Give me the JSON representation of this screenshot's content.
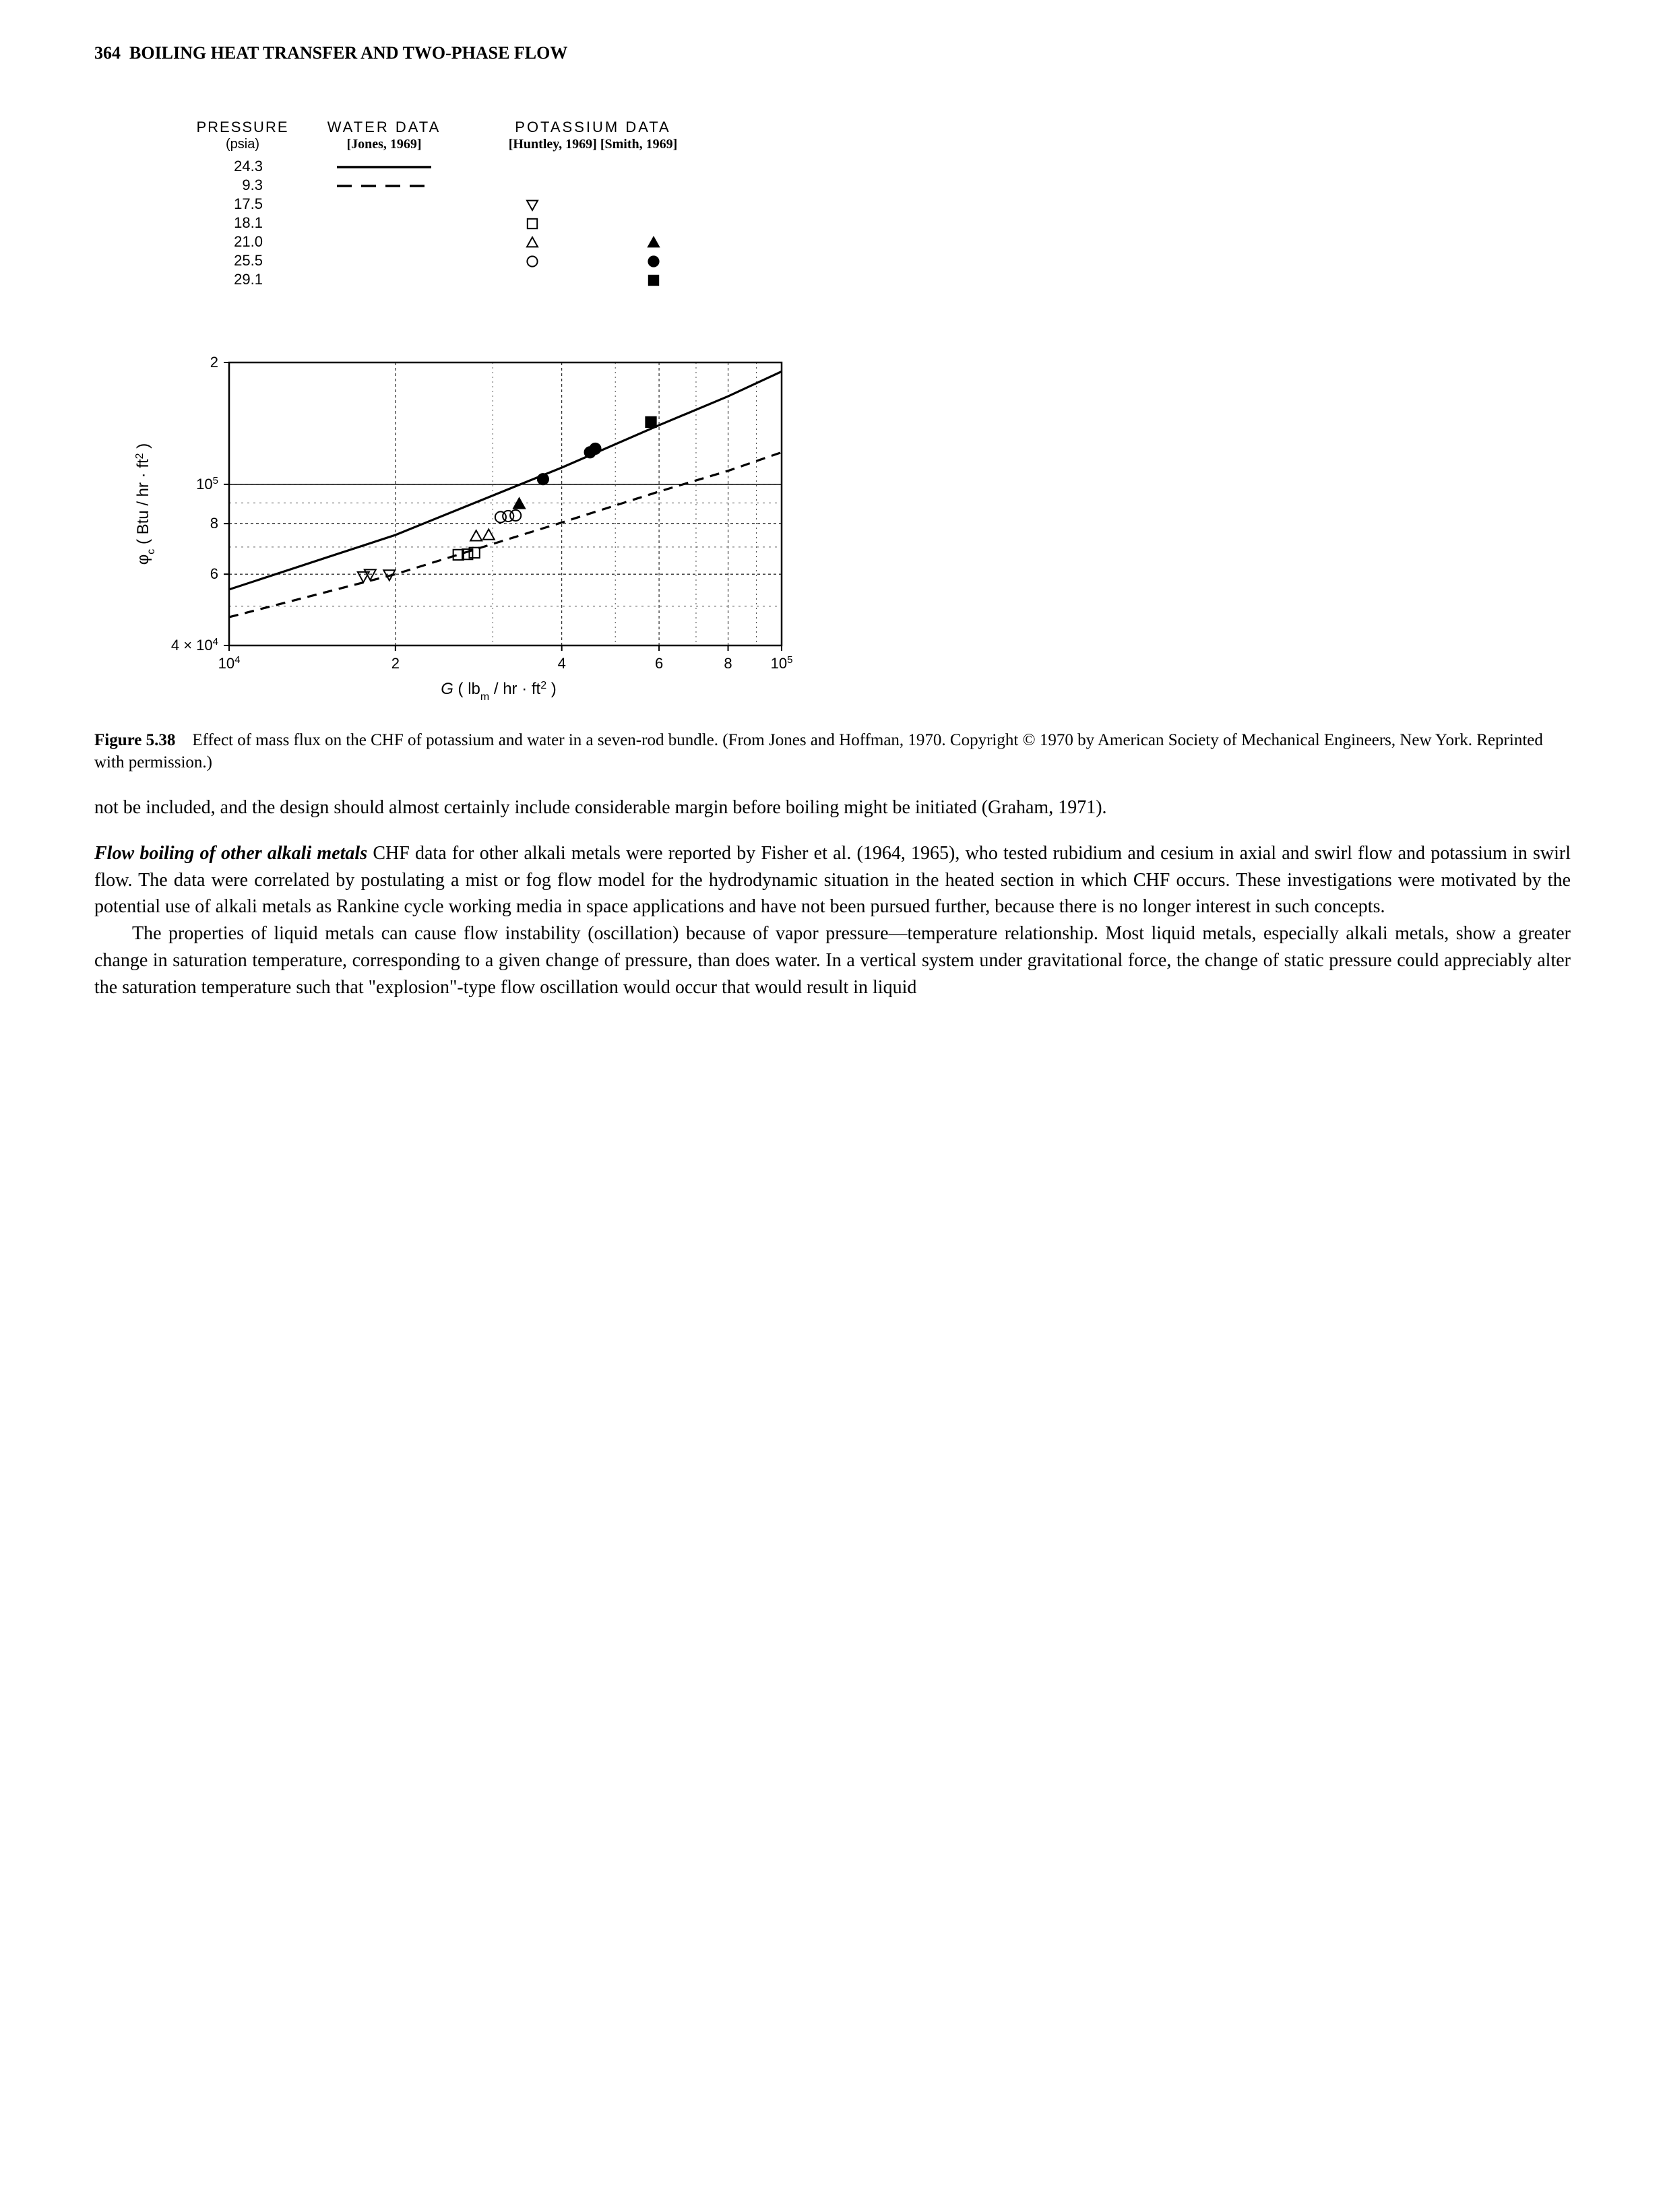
{
  "header": {
    "page_number": "364",
    "running_title": "BOILING HEAT TRANSFER AND TWO-PHASE FLOW"
  },
  "figure": {
    "type": "scatter-line-log-log",
    "legend_header": {
      "col1": "PRESSURE",
      "col1_sub": "(psia)",
      "col2": "WATER  DATA",
      "col2_sub": "[Jones, 1969]",
      "col3": "POTASSIUM   DATA",
      "col3_sub": "[Huntley, 1969] [Smith, 1969]"
    },
    "legend_rows": [
      {
        "pressure": "24.3",
        "water": "solid-line",
        "huntley": "",
        "smith": ""
      },
      {
        "pressure": "9.3",
        "water": "dash-line",
        "huntley": "",
        "smith": ""
      },
      {
        "pressure": "17.5",
        "water": "",
        "huntley": "tri-down-open",
        "smith": ""
      },
      {
        "pressure": "18.1",
        "water": "",
        "huntley": "square-open",
        "smith": ""
      },
      {
        "pressure": "21.0",
        "water": "",
        "huntley": "tri-up-open",
        "smith": "tri-up-filled"
      },
      {
        "pressure": "25.5",
        "water": "",
        "huntley": "circle-open",
        "smith": "circle-filled"
      },
      {
        "pressure": "29.1",
        "water": "",
        "huntley": "",
        "smith": "square-filled"
      }
    ],
    "axes": {
      "xlabel": "G  ( lb_m / hr · ft^2  )",
      "ylabel": "φ_c  (Btu / hr · ft^2 )",
      "xlim": [
        10000,
        100000
      ],
      "ylim": [
        40000,
        200000
      ],
      "xticks": [
        {
          "v": 10000,
          "label": "10^4"
        },
        {
          "v": 20000,
          "label": "2"
        },
        {
          "v": 40000,
          "label": "4"
        },
        {
          "v": 60000,
          "label": "6"
        },
        {
          "v": 80000,
          "label": "8"
        },
        {
          "v": 100000,
          "label": "10^5"
        }
      ],
      "yticks": [
        {
          "v": 40000,
          "label": "4 × 10^4"
        },
        {
          "v": 60000,
          "label": "6"
        },
        {
          "v": 80000,
          "label": "8"
        },
        {
          "v": 100000,
          "label": "10^5"
        },
        {
          "v": 200000,
          "label": "2"
        }
      ],
      "grid_minor_dash": "4,4",
      "grid_color": "#000000",
      "background_color": "#ffffff"
    },
    "series_lines": [
      {
        "name": "solid-line",
        "dash": "",
        "width": 3.2,
        "color": "#000000",
        "points": [
          [
            10000,
            55000
          ],
          [
            20000,
            75000
          ],
          [
            40000,
            110000
          ],
          [
            60000,
            140000
          ],
          [
            80000,
            165000
          ],
          [
            100000,
            190000
          ]
        ]
      },
      {
        "name": "dash-line",
        "dash": "14,10",
        "width": 3.2,
        "color": "#000000",
        "points": [
          [
            10000,
            47000
          ],
          [
            20000,
            60000
          ],
          [
            40000,
            80500
          ],
          [
            60000,
            96000
          ],
          [
            80000,
            108000
          ],
          [
            100000,
            120000
          ]
        ]
      }
    ],
    "series_points": [
      {
        "marker": "tri-down-open",
        "pts": [
          [
            18000,
            60000
          ],
          [
            17500,
            59200
          ],
          [
            19500,
            59800
          ]
        ]
      },
      {
        "marker": "square-open",
        "pts": [
          [
            26000,
            67000
          ],
          [
            27000,
            67200
          ],
          [
            27800,
            67800
          ]
        ]
      },
      {
        "marker": "tri-up-open",
        "pts": [
          [
            28000,
            74500
          ],
          [
            29500,
            75000
          ]
        ]
      },
      {
        "marker": "circle-open",
        "pts": [
          [
            31000,
            83000
          ],
          [
            32000,
            83500
          ],
          [
            33000,
            83800
          ]
        ]
      },
      {
        "marker": "tri-up-filled",
        "pts": [
          [
            33500,
            89500
          ]
        ]
      },
      {
        "marker": "circle-filled",
        "pts": [
          [
            37000,
            103000
          ],
          [
            45000,
            120000
          ],
          [
            46000,
            122500
          ]
        ]
      },
      {
        "marker": "square-filled",
        "pts": [
          [
            58000,
            142500
          ]
        ]
      }
    ],
    "marker_style": {
      "size": 10,
      "stroke": "#000000",
      "stroke_width": 2,
      "fill_open": "none",
      "fill_filled": "#000000"
    },
    "caption": {
      "label": "Figure 5.38",
      "text": "Effect of mass flux on the CHF of potassium and water in a seven-rod bundle. (From Jones and Hoffman, 1970. Copyright © 1970 by American Society of Mechanical Engineers, New York. Reprinted with permission.)"
    }
  },
  "paragraphs": {
    "p1": "not be included, and the design should almost certainly include considerable margin before boiling might be initiated (Graham, 1971).",
    "p2_heading": "Flow boiling of other alkali metals",
    "p2_body": "  CHF data for other alkali metals were reported by Fisher et al. (1964, 1965), who tested rubidium and cesium in axial and swirl flow and potassium in swirl flow. The data were correlated by postulating a mist or fog flow model for the hydrodynamic situation in the heated section in which CHF occurs. These investigations were motivated by the potential use of alkali metals as Rankine cycle working media in space applications and have not been pursued further, because there is no longer interest in such concepts.",
    "p3": "The properties of liquid metals can cause flow instability (oscillation) because of vapor pressure—temperature relationship. Most liquid metals, especially alkali metals, show a greater change in saturation temperature, corresponding to a given change of pressure, than does water. In a vertical system under gravitational force, the change of static pressure could appreciably alter the saturation temperature such that \"explosion\"-type flow oscillation would occur that would result in liquid"
  }
}
